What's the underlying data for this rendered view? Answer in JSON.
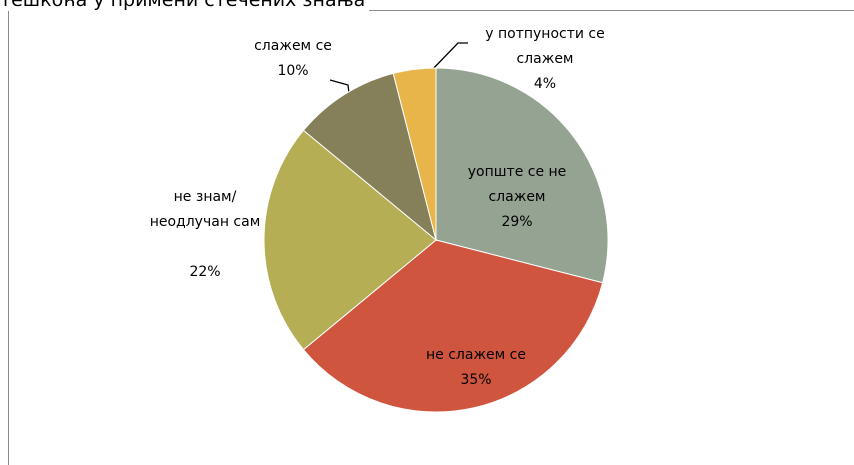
{
  "chart_data": {
    "type": "pie",
    "title": "тешкоћа у примени стечених знања",
    "categories": [
      "уопште се не слажем",
      "не слажем се",
      "не знам/неодлучан сам",
      "слажем се",
      "у потпуности се слажем"
    ],
    "values": [
      29,
      35,
      22,
      10,
      4
    ],
    "value_labels": [
      "29%",
      "35%",
      "22%",
      "10%",
      "4%"
    ],
    "colors": [
      "#94a392",
      "#d0553e",
      "#b5ae55",
      "#857f5a",
      "#e8b54a"
    ]
  }
}
